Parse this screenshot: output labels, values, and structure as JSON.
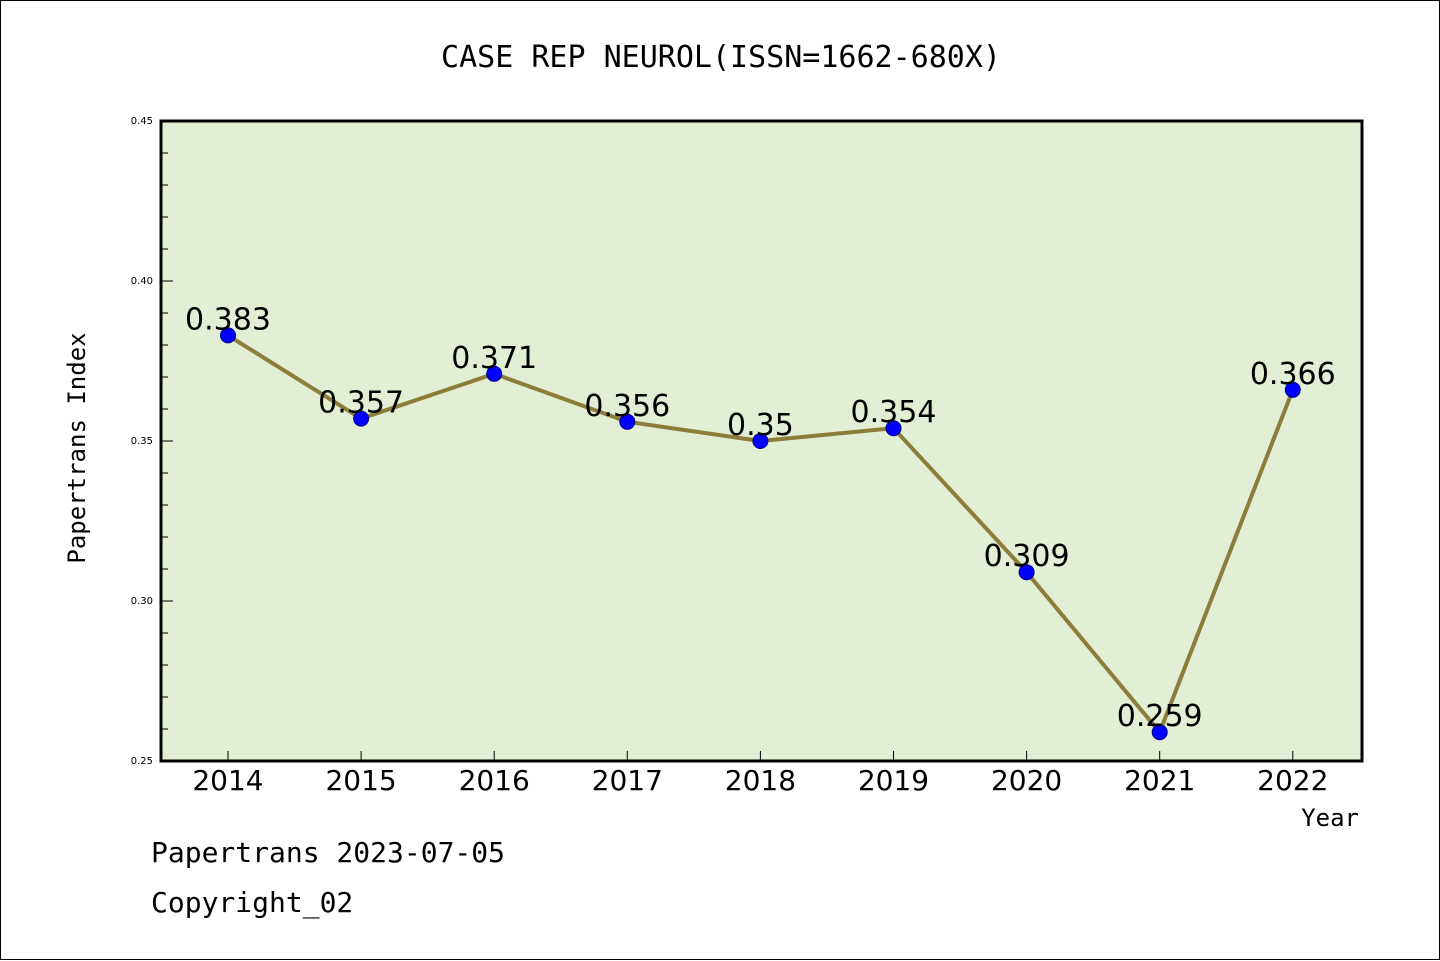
{
  "chart_data": {
    "type": "line",
    "title": "CASE REP NEUROL(ISSN=1662-680X)",
    "xlabel": "Year",
    "ylabel": "Papertrans Index",
    "categories": [
      "2014",
      "2015",
      "2016",
      "2017",
      "2018",
      "2019",
      "2020",
      "2021",
      "2022"
    ],
    "series": [
      {
        "values": [
          0.383,
          0.357,
          0.371,
          0.356,
          0.35,
          0.354,
          0.309,
          0.259,
          0.366
        ]
      }
    ],
    "data_labels": [
      "0.383",
      "0.357",
      "0.371",
      "0.356",
      "0.35",
      "0.354",
      "0.309",
      "0.259",
      "0.366"
    ],
    "ylim": [
      0.25,
      0.45
    ],
    "yticks": [
      "0.25",
      "0.30",
      "0.35",
      "0.40",
      "0.45"
    ],
    "ytick_values": [
      0.25,
      0.3,
      0.35,
      0.4,
      0.45
    ],
    "grid": false,
    "colors": {
      "plot_background": "#e2efd4",
      "line": "#8b7d3a",
      "marker": "#0000ff"
    }
  },
  "footer": {
    "line1": "Papertrans 2023-07-05",
    "line2": "Copyright_02"
  }
}
